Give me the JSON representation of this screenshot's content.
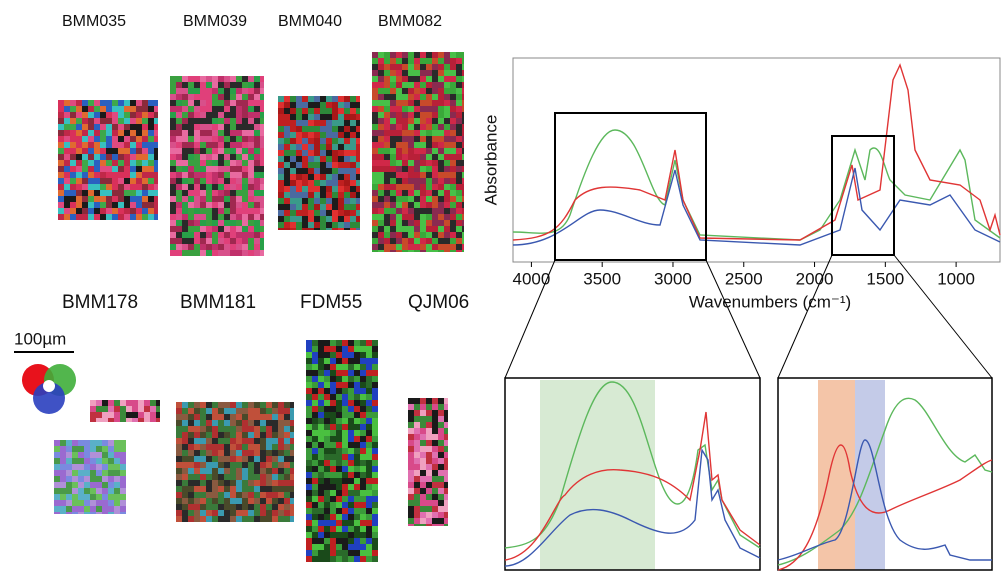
{
  "figure": {
    "samples": [
      "BMM035",
      "BMM039",
      "BMM040",
      "BMM082",
      "BMM178",
      "BMM181",
      "FDM55",
      "QJM06"
    ],
    "scale_bar": "100µm",
    "spectrum": {
      "ylabel": "Absorbance",
      "xlabel": "Wavenumbers (cm⁻¹)",
      "xlim": [
        4130,
        690
      ],
      "xticks": [
        4000,
        3500,
        3000,
        2500,
        2000,
        1500,
        1000
      ]
    }
  }
}
